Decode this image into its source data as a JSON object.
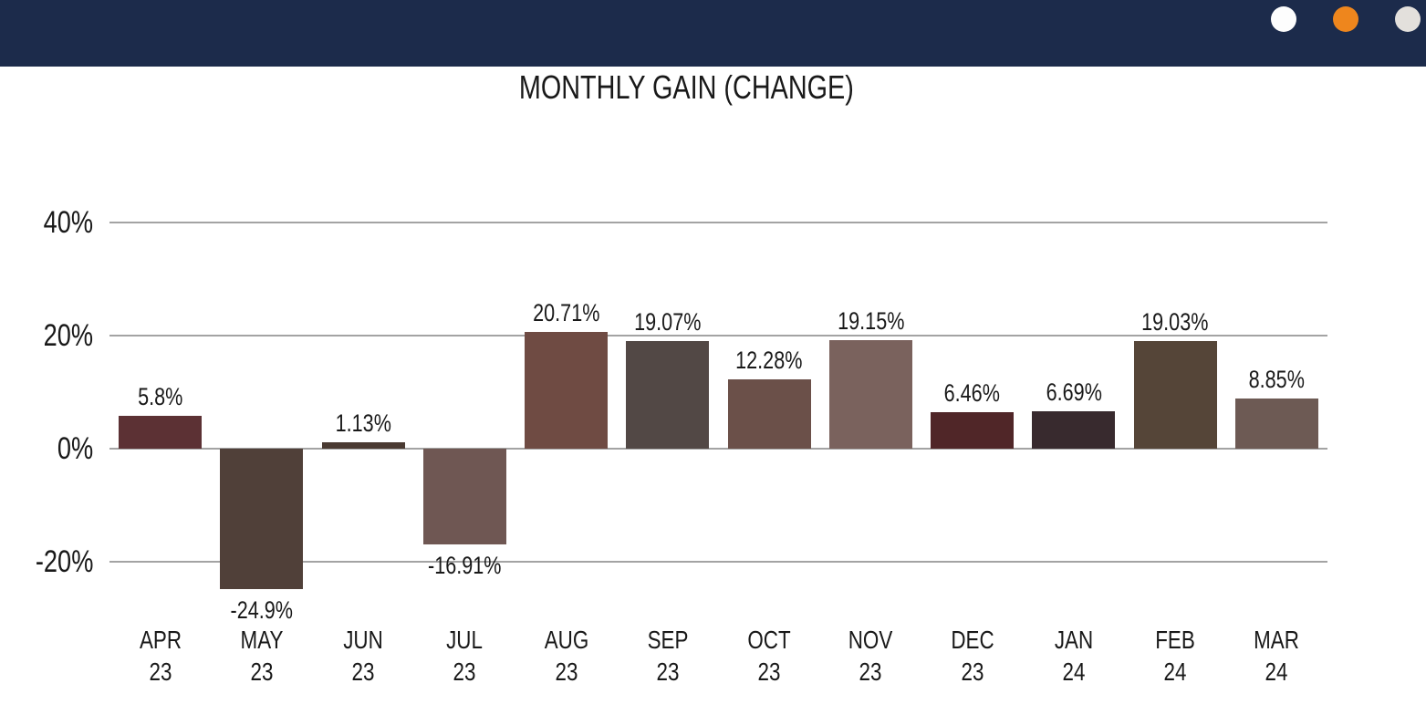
{
  "header": {
    "background_color": "#1c2b4b",
    "dots": [
      {
        "name": "white-dot",
        "color": "#fdfdfd"
      },
      {
        "name": "orange-dot",
        "color": "#ee861d"
      },
      {
        "name": "gray-dot",
        "color": "#e3e0dc"
      }
    ]
  },
  "chart_data": {
    "type": "bar",
    "title": "MONTHLY GAIN (CHANGE)",
    "xlabel": "",
    "ylabel": "",
    "ylim": [
      -30,
      45
    ],
    "grid": true,
    "gridline_color": "#a3a3a3",
    "text_color": "#191919",
    "legend": "none",
    "yticks": [
      {
        "value": 40,
        "label": "40%"
      },
      {
        "value": 20,
        "label": "20%"
      },
      {
        "value": 0,
        "label": "0%"
      },
      {
        "value": -20,
        "label": "-20%"
      }
    ],
    "categories": [
      "APR 23",
      "MAY 23",
      "JUN 23",
      "JUL 23",
      "AUG 23",
      "SEP 23",
      "OCT 23",
      "NOV 23",
      "DEC 23",
      "JAN 24",
      "FEB 24",
      "MAR 24"
    ],
    "values": [
      5.8,
      -24.9,
      1.13,
      -16.91,
      20.71,
      19.07,
      12.28,
      19.15,
      6.46,
      6.69,
      19.03,
      8.85
    ],
    "points": [
      {
        "month": "APR",
        "year": "23",
        "value": 5.8,
        "label": "5.8%",
        "color": "#5c3134"
      },
      {
        "month": "MAY",
        "year": "23",
        "value": -24.9,
        "label": "-24.9%",
        "color": "#504039"
      },
      {
        "month": "JUN",
        "year": "23",
        "value": 1.13,
        "label": "1.13%",
        "color": "#4a3a32"
      },
      {
        "month": "JUL",
        "year": "23",
        "value": -16.91,
        "label": "-16.91%",
        "color": "#6f5753"
      },
      {
        "month": "AUG",
        "year": "23",
        "value": 20.71,
        "label": "20.71%",
        "color": "#6f4b43"
      },
      {
        "month": "SEP",
        "year": "23",
        "value": 19.07,
        "label": "19.07%",
        "color": "#524845"
      },
      {
        "month": "OCT",
        "year": "23",
        "value": 12.28,
        "label": "12.28%",
        "color": "#6b5049"
      },
      {
        "month": "NOV",
        "year": "23",
        "value": 19.15,
        "label": "19.15%",
        "color": "#7a625d"
      },
      {
        "month": "DEC",
        "year": "23",
        "value": 6.46,
        "label": "6.46%",
        "color": "#502628"
      },
      {
        "month": "JAN",
        "year": "24",
        "value": 6.69,
        "label": "6.69%",
        "color": "#382a2e"
      },
      {
        "month": "FEB",
        "year": "24",
        "value": 19.03,
        "label": "19.03%",
        "color": "#554538"
      },
      {
        "month": "MAR",
        "year": "24",
        "value": 8.85,
        "label": "8.85%",
        "color": "#6d5a54"
      }
    ]
  }
}
